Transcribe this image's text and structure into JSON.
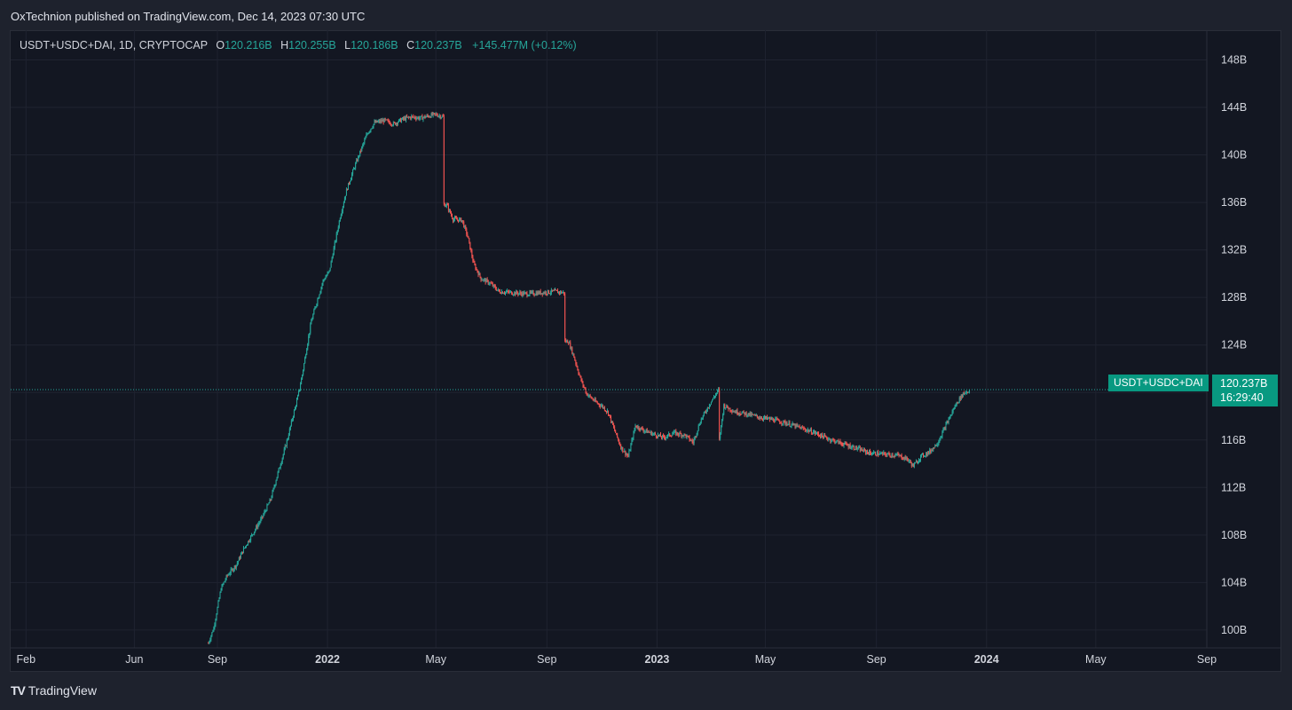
{
  "header": {
    "published": "OxTechnion published on TradingView.com, Dec 14, 2023 07:30 UTC"
  },
  "legend": {
    "symbol": "USDT+USDC+DAI, 1D, CRYPTOCAP",
    "o_label": "O",
    "o_value": "120.216B",
    "h_label": "H",
    "h_value": "120.255B",
    "l_label": "L",
    "l_value": "120.186B",
    "c_label": "C",
    "c_value": "120.237B",
    "change": "+145.477M (+0.12%)"
  },
  "price_tag": {
    "series": "USDT+USDC+DAI",
    "price": "120.237B",
    "countdown": "16:29:40"
  },
  "footer": {
    "brand": "TradingView",
    "logo": "TV"
  },
  "colors": {
    "up": "#26a69a",
    "down": "#ef5350",
    "background": "#131722",
    "grid": "#2a2e39",
    "tag": "#089981"
  },
  "chart_data": {
    "type": "candlestick",
    "ylim": [
      98.5,
      150.5
    ],
    "y_ticks": [
      {
        "value": 148,
        "label": "148B"
      },
      {
        "value": 144,
        "label": "144B"
      },
      {
        "value": 140,
        "label": "140B"
      },
      {
        "value": 136,
        "label": "136B"
      },
      {
        "value": 132,
        "label": "132B"
      },
      {
        "value": 128,
        "label": "128B"
      },
      {
        "value": 124,
        "label": "124B"
      },
      {
        "value": 120,
        "label": "120B"
      },
      {
        "value": 116,
        "label": "116B"
      },
      {
        "value": 112,
        "label": "112B"
      },
      {
        "value": 108,
        "label": "108B"
      },
      {
        "value": 104,
        "label": "104B"
      },
      {
        "value": 100,
        "label": "100B"
      }
    ],
    "x_ticks": [
      {
        "date": "2021-02-01",
        "label": "Feb",
        "bold": false
      },
      {
        "date": "2021-06-01",
        "label": "Jun",
        "bold": false
      },
      {
        "date": "2021-09-01",
        "label": "Sep",
        "bold": false
      },
      {
        "date": "2022-01-01",
        "label": "2022",
        "bold": true
      },
      {
        "date": "2022-05-01",
        "label": "May",
        "bold": false
      },
      {
        "date": "2022-09-01",
        "label": "Sep",
        "bold": false
      },
      {
        "date": "2023-01-01",
        "label": "2023",
        "bold": true
      },
      {
        "date": "2023-05-01",
        "label": "May",
        "bold": false
      },
      {
        "date": "2023-09-01",
        "label": "Sep",
        "bold": false
      },
      {
        "date": "2024-01-01",
        "label": "2024",
        "bold": true
      },
      {
        "date": "2024-05-01",
        "label": "May",
        "bold": false
      },
      {
        "date": "2024-09-01",
        "label": "Sep",
        "bold": false
      }
    ],
    "x_range": [
      "2021-01-15",
      "2024-09-01"
    ],
    "last_price": 120.237,
    "series": [
      {
        "name": "USDT+USDC+DAI",
        "points": [
          [
            "2021-08-22",
            98.9
          ],
          [
            "2021-08-28",
            100.2
          ],
          [
            "2021-09-05",
            103.5
          ],
          [
            "2021-09-12",
            104.6
          ],
          [
            "2021-09-22",
            105.5
          ],
          [
            "2021-09-30",
            106.8
          ],
          [
            "2021-10-10",
            108.1
          ],
          [
            "2021-10-20",
            109.4
          ],
          [
            "2021-10-30",
            111.0
          ],
          [
            "2021-11-08",
            113.5
          ],
          [
            "2021-11-13",
            114.8
          ],
          [
            "2021-11-18",
            116.2
          ],
          [
            "2021-11-23",
            117.8
          ],
          [
            "2021-11-29",
            119.6
          ],
          [
            "2021-12-04",
            121.5
          ],
          [
            "2021-12-09",
            123.8
          ],
          [
            "2021-12-14",
            126.0
          ],
          [
            "2021-12-20",
            127.6
          ],
          [
            "2021-12-27",
            129.4
          ],
          [
            "2022-01-03",
            130.2
          ],
          [
            "2022-01-09",
            132.5
          ],
          [
            "2022-01-15",
            134.8
          ],
          [
            "2022-01-22",
            137.0
          ],
          [
            "2022-01-29",
            138.6
          ],
          [
            "2022-02-06",
            140.2
          ],
          [
            "2022-02-14",
            141.8
          ],
          [
            "2022-02-22",
            142.7
          ],
          [
            "2022-03-05",
            142.9
          ],
          [
            "2022-03-15",
            142.6
          ],
          [
            "2022-03-25",
            143.0
          ],
          [
            "2022-04-04",
            143.2
          ],
          [
            "2022-04-14",
            143.1
          ],
          [
            "2022-04-24",
            143.3
          ],
          [
            "2022-05-01",
            143.4
          ],
          [
            "2022-05-09",
            143.2
          ],
          [
            "2022-05-13",
            135.8
          ],
          [
            "2022-05-20",
            134.6
          ],
          [
            "2022-05-30",
            134.5
          ],
          [
            "2022-06-05",
            133.2
          ],
          [
            "2022-06-12",
            130.8
          ],
          [
            "2022-06-20",
            129.6
          ],
          [
            "2022-06-30",
            129.2
          ],
          [
            "2022-07-10",
            128.5
          ],
          [
            "2022-07-25",
            128.4
          ],
          [
            "2022-08-10",
            128.3
          ],
          [
            "2022-08-25",
            128.4
          ],
          [
            "2022-09-10",
            128.5
          ],
          [
            "2022-09-20",
            128.4
          ],
          [
            "2022-09-25",
            124.3
          ],
          [
            "2022-10-01",
            123.0
          ],
          [
            "2022-10-08",
            121.2
          ],
          [
            "2022-10-15",
            119.9
          ],
          [
            "2022-10-25",
            119.2
          ],
          [
            "2022-11-02",
            118.8
          ],
          [
            "2022-11-08",
            118.3
          ],
          [
            "2022-11-15",
            116.8
          ],
          [
            "2022-11-22",
            115.4
          ],
          [
            "2022-11-30",
            114.6
          ],
          [
            "2022-12-08",
            117.2
          ],
          [
            "2022-12-18",
            116.8
          ],
          [
            "2022-12-28",
            116.5
          ],
          [
            "2023-01-08",
            116.2
          ],
          [
            "2023-01-20",
            116.6
          ],
          [
            "2023-02-01",
            116.4
          ],
          [
            "2023-02-10",
            115.8
          ],
          [
            "2023-02-18",
            117.6
          ],
          [
            "2023-02-28",
            119.0
          ],
          [
            "2023-03-10",
            120.2
          ],
          [
            "2023-03-11",
            116.0
          ],
          [
            "2023-03-16",
            118.9
          ],
          [
            "2023-03-28",
            118.4
          ],
          [
            "2023-04-10",
            118.2
          ],
          [
            "2023-04-25",
            117.9
          ],
          [
            "2023-05-10",
            117.7
          ],
          [
            "2023-05-25",
            117.4
          ],
          [
            "2023-06-10",
            117.0
          ],
          [
            "2023-06-25",
            116.6
          ],
          [
            "2023-07-10",
            116.1
          ],
          [
            "2023-07-25",
            115.7
          ],
          [
            "2023-08-10",
            115.3
          ],
          [
            "2023-08-25",
            114.9
          ],
          [
            "2023-09-10",
            114.8
          ],
          [
            "2023-09-25",
            114.7
          ],
          [
            "2023-10-05",
            114.4
          ],
          [
            "2023-10-12",
            113.8
          ],
          [
            "2023-10-20",
            114.6
          ],
          [
            "2023-10-30",
            115.0
          ],
          [
            "2023-11-08",
            115.8
          ],
          [
            "2023-11-18",
            117.4
          ],
          [
            "2023-11-28",
            119.0
          ],
          [
            "2023-12-06",
            119.9
          ],
          [
            "2023-12-14",
            120.24
          ]
        ]
      }
    ]
  }
}
